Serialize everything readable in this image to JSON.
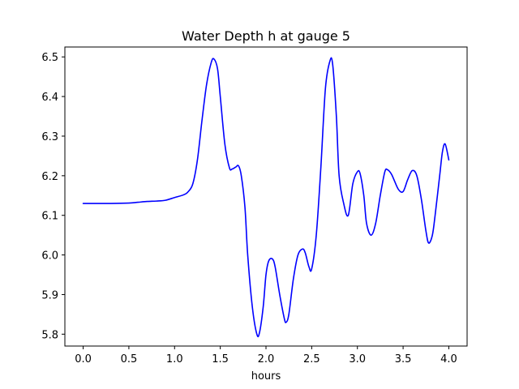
{
  "chart_data": {
    "type": "line",
    "title": "Water Depth h at gauge 5",
    "xlabel": "hours",
    "ylabel": "",
    "xlim": [
      -0.2,
      4.2
    ],
    "ylim": [
      5.77,
      6.525
    ],
    "xticks": [
      0.0,
      0.5,
      1.0,
      1.5,
      2.0,
      2.5,
      3.0,
      3.5,
      4.0
    ],
    "xtick_labels": [
      "0.0",
      "0.5",
      "1.0",
      "1.5",
      "2.0",
      "2.5",
      "3.0",
      "3.5",
      "4.0"
    ],
    "yticks": [
      5.8,
      5.9,
      6.0,
      6.1,
      6.2,
      6.3,
      6.4,
      6.5
    ],
    "ytick_labels": [
      "5.8",
      "5.9",
      "6.0",
      "6.1",
      "6.2",
      "6.3",
      "6.4",
      "6.5"
    ],
    "grid": false,
    "series": [
      {
        "name": "",
        "color": "#0000ff",
        "x": [
          0.0,
          0.3,
          0.5,
          0.6,
          0.7,
          0.8,
          0.9,
          1.0,
          1.1,
          1.15,
          1.2,
          1.25,
          1.3,
          1.35,
          1.4,
          1.43,
          1.47,
          1.5,
          1.55,
          1.6,
          1.63,
          1.67,
          1.7,
          1.73,
          1.77,
          1.8,
          1.85,
          1.9,
          1.93,
          1.97,
          2.0,
          2.03,
          2.07,
          2.1,
          2.15,
          2.2,
          2.22,
          2.25,
          2.3,
          2.35,
          2.4,
          2.43,
          2.47,
          2.5,
          2.55,
          2.6,
          2.65,
          2.7,
          2.73,
          2.77,
          2.8,
          2.85,
          2.9,
          2.95,
          3.0,
          3.03,
          3.07,
          3.1,
          3.15,
          3.2,
          3.25,
          3.3,
          3.33,
          3.37,
          3.4,
          3.45,
          3.5,
          3.55,
          3.6,
          3.65,
          3.7,
          3.75,
          3.78,
          3.82,
          3.85,
          3.9,
          3.93,
          3.96,
          4.0
        ],
        "y": [
          6.13,
          6.13,
          6.131,
          6.133,
          6.135,
          6.136,
          6.138,
          6.145,
          6.152,
          6.16,
          6.18,
          6.24,
          6.34,
          6.43,
          6.485,
          6.495,
          6.47,
          6.4,
          6.28,
          6.22,
          6.217,
          6.222,
          6.225,
          6.2,
          6.12,
          6.0,
          5.87,
          5.8,
          5.805,
          5.87,
          5.95,
          5.985,
          5.99,
          5.97,
          5.9,
          5.84,
          5.83,
          5.85,
          5.94,
          6.0,
          6.015,
          6.005,
          5.97,
          5.965,
          6.05,
          6.22,
          6.42,
          6.49,
          6.48,
          6.35,
          6.2,
          6.13,
          6.1,
          6.18,
          6.21,
          6.205,
          6.15,
          6.08,
          6.05,
          6.08,
          6.15,
          6.21,
          6.215,
          6.205,
          6.19,
          6.165,
          6.16,
          6.19,
          6.213,
          6.2,
          6.14,
          6.06,
          6.03,
          6.05,
          6.1,
          6.2,
          6.26,
          6.28,
          6.24
        ]
      }
    ]
  }
}
